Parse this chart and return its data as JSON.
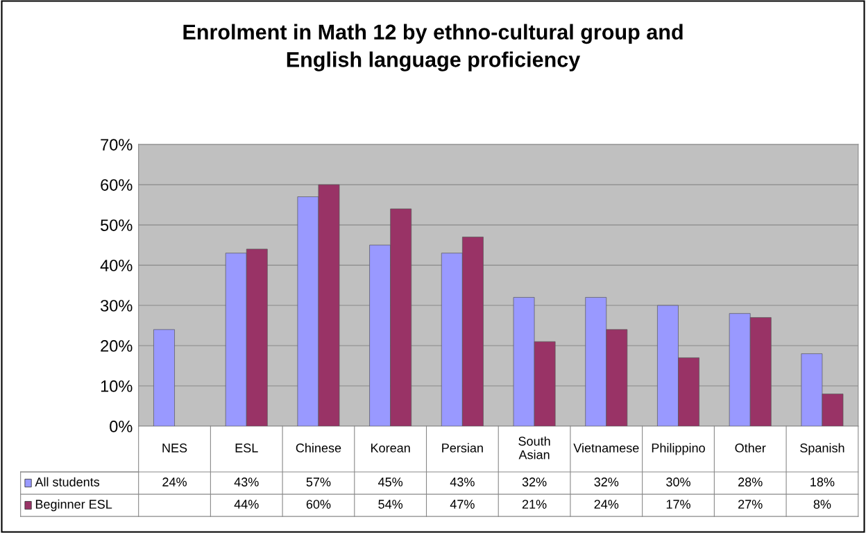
{
  "chart_data": {
    "type": "bar",
    "title": "Enrolment in Math 12 by ethno-cultural group and\nEnglish language proficiency",
    "categories": [
      "NES",
      "ESL",
      "Chinese",
      "Korean",
      "Persian",
      "South\nAsian",
      "Vietnamese",
      "Philippino",
      "Other",
      "Spanish"
    ],
    "series": [
      {
        "name": "All students",
        "color": "#9999ff",
        "values": [
          24,
          43,
          57,
          45,
          43,
          32,
          32,
          30,
          28,
          18
        ],
        "value_labels": [
          "24%",
          "43%",
          "57%",
          "45%",
          "43%",
          "32%",
          "32%",
          "30%",
          "28%",
          "18%"
        ]
      },
      {
        "name": "Beginner ESL",
        "color": "#993366",
        "values": [
          null,
          44,
          60,
          54,
          47,
          21,
          24,
          17,
          27,
          8
        ],
        "value_labels": [
          null,
          "44%",
          "60%",
          "54%",
          "47%",
          "21%",
          "24%",
          "17%",
          "27%",
          "8%"
        ]
      }
    ],
    "ylim": [
      0,
      70
    ],
    "yticks": [
      {
        "value": 0,
        "label": "0%"
      },
      {
        "value": 10,
        "label": "10%"
      },
      {
        "value": 20,
        "label": "20%"
      },
      {
        "value": 30,
        "label": "30%"
      },
      {
        "value": 40,
        "label": "40%"
      },
      {
        "value": 50,
        "label": "50%"
      },
      {
        "value": 60,
        "label": "60%"
      },
      {
        "value": 70,
        "label": "70%"
      }
    ],
    "grid": "y",
    "legend": "bottom left"
  }
}
